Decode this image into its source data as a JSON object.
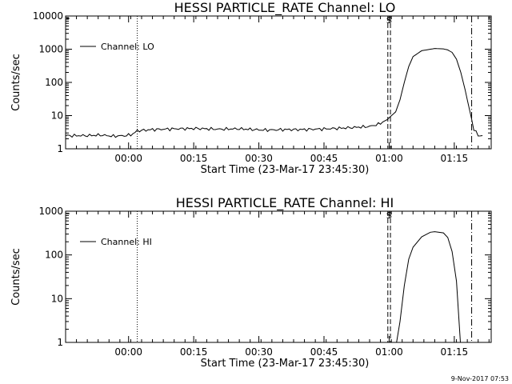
{
  "footer": {
    "timestamp": "9-Nov-2017 07:53"
  },
  "chart_data": [
    {
      "type": "line",
      "title": "HESSI PARTICLE_RATE Channel: LO",
      "xlabel": "Start Time (23-Mar-17 23:45:30)",
      "ylabel": "Counts/sec",
      "yscale": "log",
      "ylim": [
        1,
        10000
      ],
      "xlim_minutes_from_start": [
        0,
        98
      ],
      "x_ticks": [
        "00:00",
        "00:15",
        "00:30",
        "00:45",
        "01:00",
        "01:15"
      ],
      "y_ticks": [
        "1",
        "10",
        "100",
        "1000",
        "10000"
      ],
      "legend": "top-left",
      "marker_labels": [
        "S"
      ],
      "series": [
        {
          "name": "Channel: LO",
          "x": [
            0,
            2,
            5,
            8,
            11,
            14,
            15.5,
            16.5,
            20,
            25,
            30,
            35,
            40,
            45,
            48,
            50,
            52,
            55,
            60,
            65,
            70,
            72,
            74,
            76,
            77,
            78,
            79,
            80,
            82,
            85,
            87,
            88,
            89,
            90,
            91,
            92,
            93,
            94,
            95,
            96
          ],
          "y": [
            2.5,
            2.5,
            2.5,
            2.6,
            2.4,
            2.5,
            2.8,
            3.5,
            3.8,
            4.0,
            4.1,
            3.9,
            4.0,
            3.7,
            3.7,
            3.8,
            3.8,
            3.8,
            4.0,
            4.3,
            4.7,
            5.5,
            7.5,
            13,
            30,
            100,
            300,
            600,
            900,
            1050,
            1020,
            950,
            800,
            500,
            200,
            60,
            15,
            4,
            2.5,
            2.5
          ]
        }
      ],
      "vlines": [
        {
          "x_minutes": 16.5,
          "style": "dotted"
        },
        {
          "x_minutes": 74.2,
          "style": "dashed"
        },
        {
          "x_minutes": 74.8,
          "style": "dashed"
        },
        {
          "x_minutes": 93.5,
          "style": "dash-dot"
        }
      ]
    },
    {
      "type": "line",
      "title": "HESSI PARTICLE_RATE Channel: HI",
      "xlabel": "Start Time (23-Mar-17 23:45:30)",
      "ylabel": "Counts/sec",
      "yscale": "log",
      "ylim": [
        1,
        1000
      ],
      "xlim_minutes_from_start": [
        0,
        98
      ],
      "x_ticks": [
        "00:00",
        "00:15",
        "00:30",
        "00:45",
        "01:00",
        "01:15"
      ],
      "y_ticks": [
        "1",
        "10",
        "100",
        "1000"
      ],
      "legend": "top-left",
      "marker_labels": [
        "S"
      ],
      "series": [
        {
          "name": "Channel: HI",
          "x": [
            76.2,
            77,
            78,
            79,
            80,
            82,
            84,
            85,
            87,
            88,
            89,
            90,
            90.9
          ],
          "y": [
            1,
            3,
            20,
            80,
            150,
            260,
            330,
            340,
            320,
            250,
            120,
            25,
            1
          ]
        }
      ],
      "vlines": [
        {
          "x_minutes": 16.5,
          "style": "dotted"
        },
        {
          "x_minutes": 74.2,
          "style": "dashed"
        },
        {
          "x_minutes": 74.8,
          "style": "dashed"
        },
        {
          "x_minutes": 93.5,
          "style": "dash-dot"
        }
      ]
    }
  ]
}
